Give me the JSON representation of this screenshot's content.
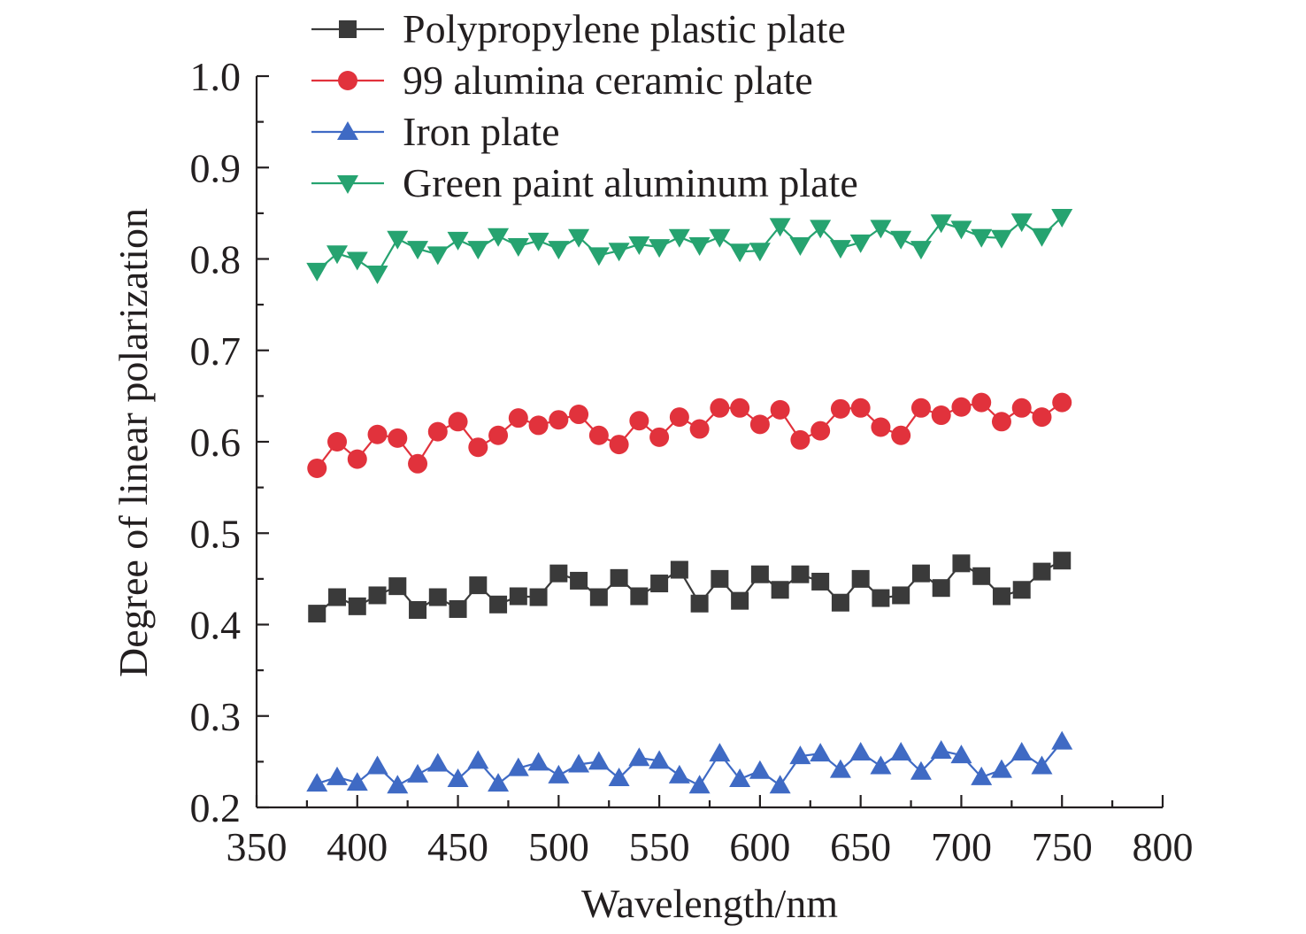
{
  "chart_data": {
    "type": "line",
    "title": "",
    "xlabel": "Wavelength/nm",
    "ylabel": "Degree of linear polarization",
    "xlim": [
      350,
      800
    ],
    "ylim": [
      0.2,
      1.0
    ],
    "x_ticks": [
      "350",
      "400",
      "450",
      "500",
      "550",
      "600",
      "650",
      "700",
      "750",
      "800"
    ],
    "y_ticks": [
      "0.2",
      "0.3",
      "0.4",
      "0.5",
      "0.6",
      "0.7",
      "0.8",
      "0.9",
      "1.0"
    ],
    "grid": false,
    "legend_position": "top",
    "x": [
      380,
      390,
      400,
      410,
      420,
      430,
      440,
      450,
      460,
      470,
      480,
      490,
      500,
      510,
      520,
      530,
      540,
      550,
      560,
      570,
      580,
      590,
      600,
      610,
      620,
      630,
      640,
      650,
      660,
      670,
      680,
      690,
      700,
      710,
      720,
      730,
      740,
      750
    ],
    "series": [
      {
        "name": "Polypropylene plastic plate",
        "color": "#3a3a3a",
        "marker": "square",
        "values": [
          0.412,
          0.43,
          0.42,
          0.432,
          0.442,
          0.416,
          0.43,
          0.417,
          0.443,
          0.422,
          0.431,
          0.43,
          0.456,
          0.448,
          0.43,
          0.451,
          0.431,
          0.445,
          0.46,
          0.423,
          0.45,
          0.426,
          0.455,
          0.438,
          0.455,
          0.447,
          0.424,
          0.45,
          0.429,
          0.432,
          0.456,
          0.44,
          0.467,
          0.453,
          0.431,
          0.438,
          0.458,
          0.47
        ]
      },
      {
        "name": "99 alumina ceramic plate",
        "color": "#e1323c",
        "marker": "circle",
        "values": [
          0.571,
          0.6,
          0.581,
          0.608,
          0.604,
          0.576,
          0.611,
          0.622,
          0.594,
          0.607,
          0.626,
          0.618,
          0.624,
          0.63,
          0.607,
          0.597,
          0.623,
          0.605,
          0.627,
          0.614,
          0.637,
          0.637,
          0.619,
          0.635,
          0.602,
          0.612,
          0.636,
          0.637,
          0.616,
          0.607,
          0.637,
          0.629,
          0.638,
          0.643,
          0.622,
          0.637,
          0.627,
          0.643
        ]
      },
      {
        "name": "Iron plate",
        "color": "#3f6ac4",
        "marker": "triangle-up",
        "values": [
          0.226,
          0.233,
          0.227,
          0.245,
          0.224,
          0.236,
          0.248,
          0.231,
          0.251,
          0.226,
          0.243,
          0.249,
          0.235,
          0.247,
          0.25,
          0.232,
          0.254,
          0.251,
          0.235,
          0.224,
          0.259,
          0.231,
          0.24,
          0.224,
          0.256,
          0.259,
          0.241,
          0.26,
          0.245,
          0.26,
          0.239,
          0.262,
          0.257,
          0.233,
          0.241,
          0.26,
          0.245,
          0.272
        ]
      },
      {
        "name": "Green paint aluminum plate",
        "color": "#26a370",
        "marker": "triangle-down",
        "values": [
          0.787,
          0.806,
          0.799,
          0.784,
          0.822,
          0.811,
          0.805,
          0.821,
          0.811,
          0.825,
          0.814,
          0.82,
          0.811,
          0.824,
          0.804,
          0.809,
          0.816,
          0.813,
          0.824,
          0.815,
          0.824,
          0.808,
          0.809,
          0.836,
          0.815,
          0.834,
          0.812,
          0.818,
          0.834,
          0.822,
          0.811,
          0.84,
          0.833,
          0.824,
          0.823,
          0.841,
          0.825,
          0.846
        ]
      }
    ]
  }
}
